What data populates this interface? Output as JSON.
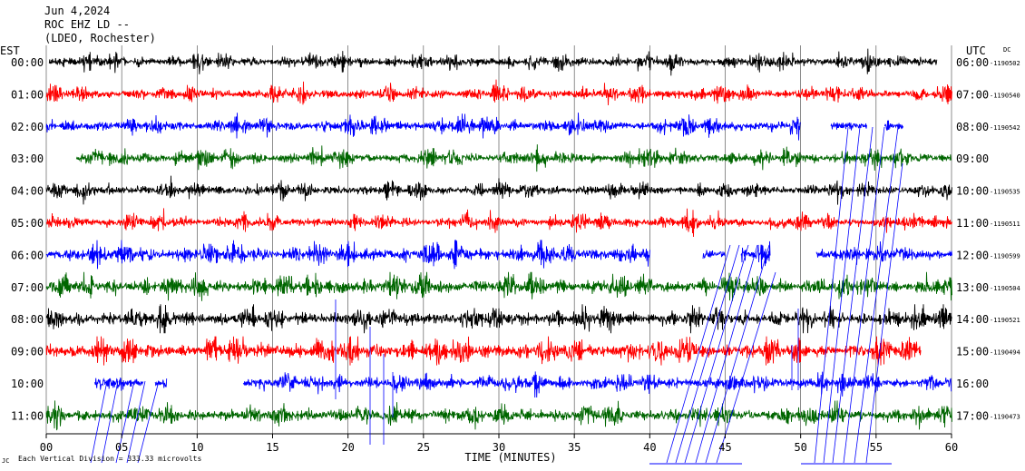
{
  "header": {
    "date": "Jun 4,2024",
    "station": "ROC EHZ LD --",
    "network": "(LDEO, Rochester)"
  },
  "axis": {
    "left_title": "EST",
    "right_title": "UTC",
    "dc_title": "DC",
    "xlabel": "TIME (MINUTES)",
    "footnote": "Each Vertical Division = 333.33 microvolts",
    "x_ticks": [
      "00",
      "05",
      "10",
      "15",
      "20",
      "25",
      "30",
      "35",
      "40",
      "45",
      "50",
      "55",
      "60"
    ]
  },
  "colors": {
    "black": "#000000",
    "red": "#ff0000",
    "blue": "#0000ff",
    "green": "#006600"
  },
  "chart_data": {
    "type": "line",
    "subtype": "helicorder seismogram",
    "xlim": [
      0,
      60
    ],
    "grid": "vertical lines every 5 minutes",
    "rows": [
      {
        "est": "00:00",
        "utc": "06:00",
        "dc": "-1190502",
        "color": "black",
        "start": 0.2,
        "end": 59.0,
        "amp": 0.9,
        "gaps": []
      },
      {
        "est": "01:00",
        "utc": "07:00",
        "dc": "-1190540",
        "color": "red",
        "start": 0.0,
        "end": 60.0,
        "amp": 0.9,
        "gaps": []
      },
      {
        "est": "02:00",
        "utc": "08:00",
        "dc": "-1190542",
        "color": "blue",
        "start": 0.0,
        "end": 56.8,
        "amp": 1.0,
        "gaps": [
          [
            50.0,
            52.0
          ],
          [
            54.4,
            55.5
          ]
        ]
      },
      {
        "est": "03:00",
        "utc": "09:00",
        "dc": "",
        "color": "green",
        "start": 2.0,
        "end": 60.0,
        "amp": 1.0,
        "gaps": []
      },
      {
        "est": "04:00",
        "utc": "10:00",
        "dc": "-1190535",
        "color": "black",
        "start": 0.0,
        "end": 60.0,
        "amp": 0.9,
        "gaps": []
      },
      {
        "est": "05:00",
        "utc": "11:00",
        "dc": "-1190511",
        "color": "red",
        "start": 0.0,
        "end": 60.0,
        "amp": 0.9,
        "gaps": []
      },
      {
        "est": "06:00",
        "utc": "12:00",
        "dc": "-1190599",
        "color": "blue",
        "start": 0.0,
        "end": 60.0,
        "amp": 1.2,
        "gaps": [
          [
            40.0,
            43.5
          ],
          [
            45.0,
            46.0
          ],
          [
            48.0,
            51.0
          ]
        ]
      },
      {
        "est": "07:00",
        "utc": "13:00",
        "dc": "-1190504",
        "color": "green",
        "start": 0.0,
        "end": 60.0,
        "amp": 1.3,
        "gaps": []
      },
      {
        "est": "08:00",
        "utc": "14:00",
        "dc": "-1190521",
        "color": "black",
        "start": 0.0,
        "end": 60.0,
        "amp": 1.2,
        "gaps": []
      },
      {
        "est": "09:00",
        "utc": "15:00",
        "dc": "-1190494",
        "color": "red",
        "start": 0.0,
        "end": 58.0,
        "amp": 1.4,
        "gaps": []
      },
      {
        "est": "10:00",
        "utc": "16:00",
        "dc": "",
        "color": "blue",
        "start": 3.2,
        "end": 60.0,
        "amp": 1.1,
        "gaps": [
          [
            6.4,
            7.2
          ],
          [
            8.0,
            13.0
          ]
        ]
      },
      {
        "est": "11:00",
        "utc": "17:00",
        "dc": "-1190473",
        "color": "green",
        "start": 0.0,
        "end": 60.0,
        "amp": 1.1,
        "gaps": []
      }
    ]
  }
}
